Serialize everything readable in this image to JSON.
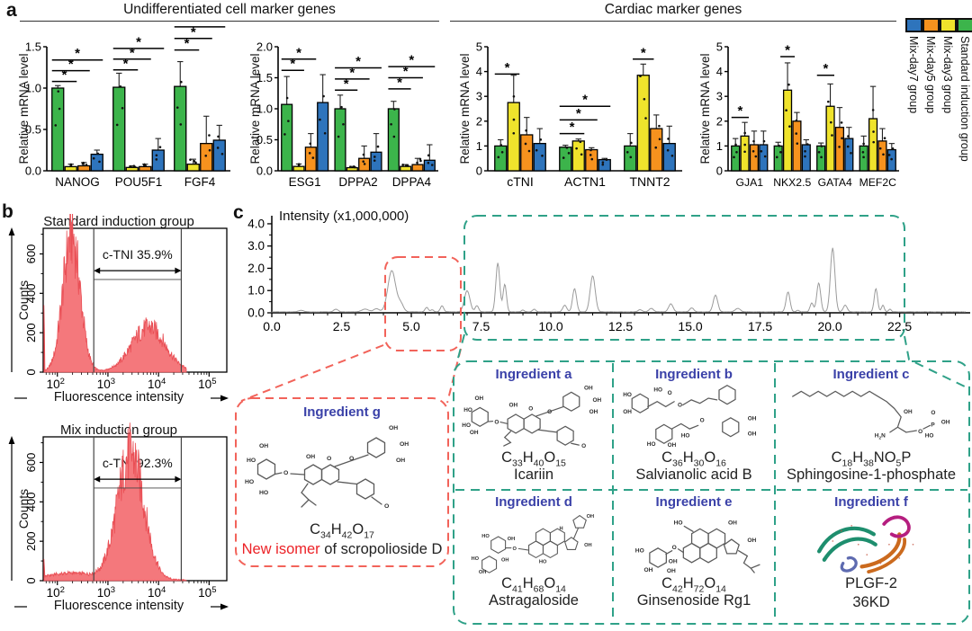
{
  "panels": {
    "a": "a",
    "b": "b",
    "c": "c"
  },
  "panel_a": {
    "title_left": "Undifferentiated cell marker genes",
    "title_right": "Cardiac marker genes",
    "ylabel": "Relative mRNA level",
    "legend": [
      {
        "label": "Mix-day7 group",
        "color": "#2E74BC"
      },
      {
        "label": "Mix-day5 group",
        "color": "#F6921E"
      },
      {
        "label": "Mix-day3 group",
        "color": "#EFE32C"
      },
      {
        "label": "Standard induction group",
        "color": "#3CB44B"
      }
    ]
  },
  "colors": {
    "green": "#3CB44B",
    "yellow": "#EFE32C",
    "orange": "#F6921E",
    "blue": "#2E74BC",
    "hist_fill": "#F4787C",
    "hist_line": "#E94F55",
    "red_dash": "#F2635A",
    "green_dash": "#2FA188",
    "ingredient_label": "#3A41A8",
    "new_isomer_red": "#EC2227"
  },
  "chart_data": [
    {
      "type": "bar",
      "panel": "a1",
      "ylabel": "Relative mRNA level",
      "categories": [
        "NANOG",
        "POU5F1",
        "FGF4"
      ],
      "ylim": [
        0,
        1.5
      ],
      "ystep": 0.5,
      "ydecimals": 1,
      "sig_label": "*",
      "series": [
        {
          "name": "Standard induction group",
          "color": "#3CB44B",
          "values": [
            1.0,
            1.01,
            1.02
          ],
          "errors": [
            0.03,
            0.17,
            0.3
          ]
        },
        {
          "name": "Mix-day3 group",
          "color": "#EFE32C",
          "values": [
            0.05,
            0.04,
            0.08
          ],
          "errors": [
            0.03,
            0.02,
            0.06
          ]
        },
        {
          "name": "Mix-day5 group",
          "color": "#F6921E",
          "values": [
            0.06,
            0.05,
            0.33
          ],
          "errors": [
            0.04,
            0.03,
            0.33
          ]
        },
        {
          "name": "Mix-day7 group",
          "color": "#2E74BC",
          "values": [
            0.2,
            0.25,
            0.37
          ],
          "errors": [
            0.05,
            0.14,
            0.18
          ]
        }
      ],
      "sig": [
        [
          0,
          0,
          1,
          1.08
        ],
        [
          0,
          0,
          2,
          1.21
        ],
        [
          0,
          0,
          3,
          1.34
        ],
        [
          1,
          0,
          1,
          1.22
        ],
        [
          1,
          0,
          2,
          1.35
        ],
        [
          1,
          0,
          3,
          1.48
        ],
        [
          2,
          0,
          1,
          1.46
        ],
        [
          2,
          0,
          2,
          1.6
        ],
        [
          2,
          0,
          3,
          1.74
        ]
      ]
    },
    {
      "type": "bar",
      "panel": "a2",
      "ylabel": "Relative mRNA level",
      "categories": [
        "ESG1",
        "DPPA2",
        "DPPA4"
      ],
      "ylim": [
        0,
        2.0
      ],
      "ystep": 0.5,
      "ydecimals": 1,
      "sig_label": "*",
      "series": [
        {
          "name": "Standard induction group",
          "color": "#3CB44B",
          "values": [
            1.07,
            1.0,
            1.0
          ],
          "errors": [
            0.45,
            0.22,
            0.12
          ]
        },
        {
          "name": "Mix-day3 group",
          "color": "#EFE32C",
          "values": [
            0.07,
            0.05,
            0.07
          ],
          "errors": [
            0.04,
            0.02,
            0.03
          ]
        },
        {
          "name": "Mix-day5 group",
          "color": "#F6921E",
          "values": [
            0.38,
            0.2,
            0.1
          ],
          "errors": [
            0.22,
            0.2,
            0.1
          ]
        },
        {
          "name": "Mix-day7 group",
          "color": "#2E74BC",
          "values": [
            1.1,
            0.3,
            0.17
          ],
          "errors": [
            0.45,
            0.3,
            0.25
          ]
        }
      ],
      "sig": [
        [
          0,
          0,
          1,
          1.62
        ],
        [
          0,
          0,
          2,
          1.8
        ],
        [
          1,
          0,
          1,
          1.3
        ],
        [
          1,
          0,
          2,
          1.48
        ],
        [
          1,
          0,
          3,
          1.66
        ],
        [
          2,
          0,
          1,
          1.32
        ],
        [
          2,
          0,
          2,
          1.5
        ],
        [
          2,
          0,
          3,
          1.68
        ]
      ]
    },
    {
      "type": "bar",
      "panel": "a3",
      "ylabel": "Relative mRNA level",
      "categories": [
        "cTNI",
        "ACTN1",
        "TNNT2"
      ],
      "ylim": [
        0,
        5
      ],
      "ystep": 1,
      "ydecimals": 0,
      "sig_label": "*",
      "series": [
        {
          "name": "Standard induction group",
          "color": "#3CB44B",
          "values": [
            1.0,
            0.95,
            1.0
          ],
          "errors": [
            0.25,
            0.08,
            0.5
          ]
        },
        {
          "name": "Mix-day3 group",
          "color": "#EFE32C",
          "values": [
            2.75,
            1.2,
            3.85
          ],
          "errors": [
            1.1,
            0.08,
            0.45
          ]
        },
        {
          "name": "Mix-day5 group",
          "color": "#F6921E",
          "values": [
            1.45,
            0.85,
            1.7
          ],
          "errors": [
            0.7,
            0.08,
            0.55
          ]
        },
        {
          "name": "Mix-day7 group",
          "color": "#2E74BC",
          "values": [
            1.1,
            0.45,
            1.1
          ],
          "errors": [
            0.6,
            0.05,
            0.7
          ]
        }
      ],
      "sig": [
        [
          0,
          0,
          1,
          3.9
        ],
        [
          1,
          0,
          1,
          1.5
        ],
        [
          1,
          0,
          2,
          2.05
        ],
        [
          1,
          0,
          3,
          2.6
        ],
        [
          2,
          1,
          1,
          4.5
        ]
      ]
    },
    {
      "type": "bar",
      "panel": "a4",
      "ylabel": "Relative mRNA level",
      "categories": [
        "GJA1",
        "NKX2.5",
        "GATA4",
        "MEF2C"
      ],
      "ylim": [
        0,
        5
      ],
      "ystep": 1,
      "ydecimals": 0,
      "sig_label": "*",
      "series": [
        {
          "name": "Standard induction group",
          "color": "#3CB44B",
          "values": [
            1.0,
            1.0,
            1.0,
            1.0
          ],
          "errors": [
            0.3,
            0.15,
            0.12,
            0.4
          ]
        },
        {
          "name": "Mix-day3 group",
          "color": "#EFE32C",
          "values": [
            1.4,
            3.25,
            2.6,
            2.1
          ],
          "errors": [
            0.55,
            1.1,
            0.9,
            1.3
          ]
        },
        {
          "name": "Mix-day5 group",
          "color": "#F6921E",
          "values": [
            1.05,
            2.0,
            1.75,
            1.2
          ],
          "errors": [
            0.55,
            0.35,
            0.8,
            0.5
          ]
        },
        {
          "name": "Mix-day7 group",
          "color": "#2E74BC",
          "values": [
            1.05,
            1.05,
            1.3,
            0.85
          ],
          "errors": [
            0.55,
            0.2,
            0.45,
            0.25
          ]
        }
      ],
      "sig": [
        [
          0,
          0,
          1,
          2.15
        ],
        [
          1,
          1,
          1,
          4.6
        ],
        [
          2,
          0,
          1,
          3.85
        ]
      ]
    },
    {
      "type": "line",
      "panel": "c-chromatogram",
      "title": "Intensity (x1,000,000)",
      "x_range": [
        0,
        24.9
      ],
      "y_range": [
        0,
        4.2
      ],
      "xticks": [
        0.0,
        2.5,
        5.0,
        7.5,
        10.0,
        12.5,
        15.0,
        17.5,
        20.0,
        22.5
      ],
      "yticks": [
        0.0,
        1.0,
        2.0,
        3.0,
        4.0
      ],
      "peaks": [
        [
          1.05,
          0.07,
          0.1
        ],
        [
          2.3,
          0.12,
          0.08
        ],
        [
          3.35,
          0.13,
          0.12
        ],
        [
          3.75,
          0.14,
          0.1
        ],
        [
          4.3,
          1.85,
          0.14
        ],
        [
          4.62,
          0.35,
          0.1
        ],
        [
          5.55,
          0.2,
          0.06
        ],
        [
          5.75,
          0.1,
          0.05
        ],
        [
          6.1,
          0.27,
          0.06
        ],
        [
          7.0,
          0.95,
          0.1
        ],
        [
          7.35,
          0.28,
          0.06
        ],
        [
          8.1,
          2.2,
          0.07
        ],
        [
          8.35,
          1.25,
          0.06
        ],
        [
          9.0,
          0.08,
          0.06
        ],
        [
          9.4,
          0.12,
          0.06
        ],
        [
          10.5,
          0.3,
          0.07
        ],
        [
          10.85,
          1.05,
          0.07
        ],
        [
          11.5,
          1.62,
          0.09
        ],
        [
          13.2,
          0.1,
          0.07
        ],
        [
          13.6,
          0.16,
          0.08
        ],
        [
          14.3,
          0.36,
          0.08
        ],
        [
          15.05,
          0.18,
          0.07
        ],
        [
          15.9,
          0.75,
          0.08
        ],
        [
          16.7,
          0.16,
          0.09
        ],
        [
          18.5,
          0.9,
          0.07
        ],
        [
          18.85,
          0.08,
          0.05
        ],
        [
          19.35,
          0.4,
          0.06
        ],
        [
          19.6,
          1.3,
          0.07
        ],
        [
          20.1,
          2.88,
          0.08
        ],
        [
          20.55,
          0.3,
          0.07
        ],
        [
          21.65,
          1.05,
          0.06
        ],
        [
          21.9,
          0.3,
          0.05
        ],
        [
          22.15,
          0.12,
          0.05
        ]
      ]
    },
    {
      "type": "histogram",
      "panel": "b-top",
      "title": "Standard induction group",
      "gate_label": "c-TNI 35.9%",
      "xlabel": "Fluorescence intensity",
      "ylabel": "Counts",
      "yticks": [
        0,
        200,
        400,
        600
      ],
      "xticks_exp": [
        2,
        3,
        4,
        5
      ],
      "gates_log10": [
        2.72,
        4.45
      ],
      "edge_spike": 340,
      "seed": 7,
      "components": [
        {
          "c": 2.28,
          "s": 0.17,
          "a": 690
        },
        {
          "c": 3.8,
          "s": 0.33,
          "a": 225
        }
      ]
    },
    {
      "type": "histogram",
      "panel": "b-bottom",
      "title": "Mix induction group",
      "gate_label": "c-TNI 92.3%",
      "xlabel": "Fluorescence intensity",
      "ylabel": "Counts",
      "yticks": [
        0,
        200,
        400,
        600
      ],
      "xticks_exp": [
        2,
        3,
        4,
        5
      ],
      "gates_log10": [
        2.72,
        4.45
      ],
      "edge_spike": 110,
      "seed": 41,
      "components": [
        {
          "c": 3.45,
          "s": 0.26,
          "a": 640
        },
        {
          "c": 2.3,
          "s": 0.5,
          "a": 35
        }
      ]
    }
  ],
  "ingredients": {
    "a": {
      "label": "Ingredient a",
      "formula": "C33H40O15",
      "name": "Icariin"
    },
    "b": {
      "label": "Ingredient b",
      "formula": "C36H30O16",
      "name": "Salvianolic acid B"
    },
    "c": {
      "label": "Ingredient c",
      "formula": "C18H38NO5P",
      "name": "Sphingosine-1-phosphate"
    },
    "d": {
      "label": "Ingredient d",
      "formula": "C41H68O14",
      "name": "Astragaloside"
    },
    "e": {
      "label": "Ingredient e",
      "formula": "C42H72O14",
      "name": "Ginsenoside Rg1"
    },
    "f": {
      "label": "Ingredient f",
      "name_line1": "PLGF-2",
      "name_line2": "36KD"
    },
    "g": {
      "label": "Ingredient g",
      "formula": "C34H42O17",
      "name_red": "New isomer",
      "name_black": "of scropolioside D"
    }
  }
}
